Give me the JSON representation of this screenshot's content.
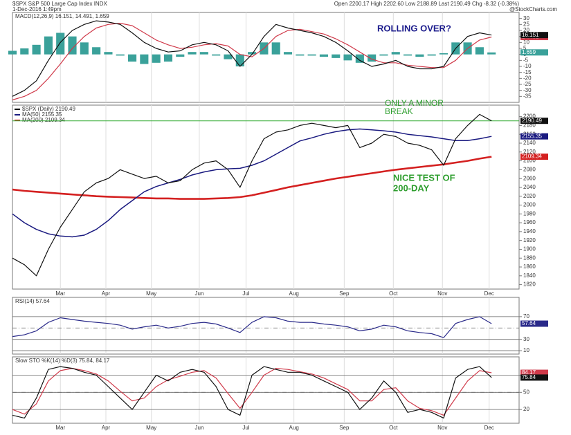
{
  "header": {
    "title": "$SPX S&P 500 Large Cap Index INDX",
    "date": "1-Dec-2016 1:49pm",
    "quote": "Open 2200.17 High 2202.60 Low 2188.89 Last 2190.49 Chg -8.32 (-0.38%)",
    "source": "@StockCharts.com"
  },
  "chart_data": [
    {
      "type": "line",
      "title": "MACD(12,26,9) 16.151, 14.491, 1.659",
      "xlim": [
        0,
        42.3
      ],
      "ylim": [
        -40,
        35
      ],
      "yticks": [
        -35,
        -30,
        -25,
        -20,
        -15,
        -10,
        -5,
        0,
        5,
        10,
        15,
        20,
        25,
        30
      ],
      "annotations": [
        {
          "text": "ROLLING OVER?",
          "color": "#1c1c8c"
        }
      ],
      "series": [
        {
          "type": "bar",
          "color": "#3aa19a",
          "values": [
            3,
            5,
            8,
            15,
            18,
            15,
            10,
            6,
            2,
            -1,
            -6,
            -8,
            -7,
            -6,
            -2,
            2,
            2,
            -1,
            -4,
            -10,
            2,
            10,
            10,
            2,
            -1,
            -1,
            -2,
            -3,
            -5,
            -7,
            -6,
            -1,
            2,
            -1,
            -2,
            -1,
            1,
            10,
            10,
            6,
            1.659
          ]
        },
        {
          "color": "#d03a4a",
          "values": [
            -38,
            -35,
            -30,
            -20,
            -8,
            5,
            15,
            22,
            25,
            26,
            24,
            18,
            12,
            8,
            5,
            6,
            8,
            9,
            7,
            0,
            -2,
            5,
            15,
            20,
            21,
            19,
            17,
            13,
            8,
            2,
            -4,
            -7,
            -7,
            -9,
            -10,
            -11,
            -11,
            -5,
            5,
            12,
            14.491
          ]
        },
        {
          "color": "#111111",
          "values": [
            -35,
            -30,
            -22,
            -5,
            10,
            20,
            25,
            28,
            27,
            25,
            18,
            10,
            5,
            2,
            3,
            8,
            10,
            8,
            3,
            -10,
            0,
            15,
            25,
            22,
            20,
            18,
            15,
            10,
            3,
            -5,
            -10,
            -8,
            -5,
            -10,
            -12,
            -12,
            -10,
            5,
            15,
            18,
            16.151
          ]
        }
      ]
    },
    {
      "type": "line",
      "xlim": [
        0,
        42.3
      ],
      "ylim": [
        1810,
        2226
      ],
      "yticks": [
        1820,
        1840,
        1860,
        1880,
        1900,
        1920,
        1940,
        1960,
        1980,
        2000,
        2020,
        2040,
        2060,
        2080,
        2100,
        2120,
        2140,
        2160,
        2180,
        2200
      ],
      "xticks": [
        {
          "value": 4,
          "label": "Mar"
        },
        {
          "value": 7.8,
          "label": "Apr"
        },
        {
          "value": 11.6,
          "label": "May"
        },
        {
          "value": 15.6,
          "label": "Jun"
        },
        {
          "value": 19.5,
          "label": "Jul"
        },
        {
          "value": 23.5,
          "label": "Aug"
        },
        {
          "value": 27.7,
          "label": "Sep"
        },
        {
          "value": 31.8,
          "label": "Oct"
        },
        {
          "value": 35.9,
          "label": "Nov"
        },
        {
          "value": 39.8,
          "label": "Dec"
        }
      ],
      "last_line": "#33aa33",
      "annotations": [
        {
          "text": "ONLY A MINOR",
          "color": "#2e9e2e"
        },
        {
          "text": "BREAK",
          "color": "#2e9e2e"
        },
        {
          "text": "NICE TEST OF",
          "color": "#2e9e2e"
        },
        {
          "text": "200-DAY",
          "color": "#2e9e2e"
        }
      ],
      "series": [
        {
          "name": "MA(200) 2109.34",
          "color": "#d42020",
          "width": 2.6,
          "values": [
            2035,
            2032,
            2030,
            2028,
            2026,
            2024,
            2022,
            2020,
            2019,
            2018,
            2017,
            2016,
            2015,
            2015,
            2014,
            2014,
            2014,
            2015,
            2016,
            2018,
            2022,
            2028,
            2034,
            2040,
            2045,
            2050,
            2055,
            2060,
            2064,
            2068,
            2072,
            2076,
            2080,
            2083,
            2086,
            2089,
            2092,
            2096,
            2100,
            2105,
            2109.34
          ]
        },
        {
          "name": "MA(50) 2155.35",
          "color": "#1a1a80",
          "width": 1.5,
          "values": [
            1980,
            1960,
            1945,
            1935,
            1930,
            1928,
            1932,
            1945,
            1965,
            1990,
            2010,
            2030,
            2042,
            2050,
            2058,
            2068,
            2075,
            2080,
            2082,
            2083,
            2090,
            2100,
            2115,
            2130,
            2145,
            2152,
            2160,
            2166,
            2170,
            2172,
            2170,
            2168,
            2165,
            2160,
            2157,
            2154,
            2150,
            2146,
            2146,
            2150,
            2155.35
          ]
        },
        {
          "name": "$SPX (Daily) 2190.49",
          "color": "#111111",
          "width": 1.2,
          "values": [
            1880,
            1865,
            1840,
            1900,
            1950,
            1990,
            2030,
            2050,
            2060,
            2080,
            2070,
            2060,
            2065,
            2050,
            2055,
            2080,
            2095,
            2100,
            2080,
            2040,
            2100,
            2150,
            2165,
            2170,
            2180,
            2185,
            2180,
            2175,
            2180,
            2130,
            2140,
            2160,
            2155,
            2140,
            2135,
            2125,
            2090,
            2150,
            2180,
            2205,
            2190.49
          ]
        }
      ]
    },
    {
      "type": "line",
      "title": "RSI(14) 57.64",
      "xlim": [
        0,
        42.3
      ],
      "ylim": [
        4,
        104
      ],
      "yticks": [
        10,
        30,
        70
      ],
      "grid": true,
      "midline": 50,
      "series": [
        {
          "color": "#2a2a8a",
          "values": [
            35,
            38,
            45,
            60,
            68,
            65,
            62,
            60,
            58,
            55,
            48,
            52,
            55,
            50,
            53,
            58,
            60,
            57,
            50,
            42,
            60,
            70,
            68,
            62,
            60,
            60,
            57,
            55,
            52,
            45,
            48,
            55,
            52,
            45,
            42,
            40,
            33,
            58,
            65,
            70,
            57.64
          ]
        }
      ]
    },
    {
      "type": "line",
      "title": "Slow STO %K(14) %D(3) 75.84, 84.17",
      "xlim": [
        0,
        42.3
      ],
      "ylim": [
        -4,
        112
      ],
      "yticks": [
        20,
        50,
        80
      ],
      "grid": true,
      "midline": 50,
      "xticks": [
        {
          "value": 4,
          "label": "Mar"
        },
        {
          "value": 7.8,
          "label": "Apr"
        },
        {
          "value": 11.6,
          "label": "May"
        },
        {
          "value": 15.6,
          "label": "Jun"
        },
        {
          "value": 19.5,
          "label": "Jul"
        },
        {
          "value": 23.5,
          "label": "Aug"
        },
        {
          "value": 27.7,
          "label": "Sep"
        },
        {
          "value": 31.8,
          "label": "Oct"
        },
        {
          "value": 35.9,
          "label": "Nov"
        },
        {
          "value": 39.8,
          "label": "Dec"
        }
      ],
      "series": [
        {
          "color": "#d03a4a",
          "values": [
            20,
            12,
            30,
            70,
            88,
            92,
            88,
            82,
            70,
            52,
            35,
            40,
            60,
            72,
            78,
            85,
            88,
            75,
            48,
            22,
            50,
            80,
            92,
            90,
            86,
            82,
            75,
            65,
            55,
            35,
            35,
            55,
            58,
            35,
            22,
            18,
            10,
            40,
            70,
            88,
            84.17
          ]
        },
        {
          "color": "#111111",
          "values": [
            10,
            5,
            40,
            90,
            95,
            92,
            85,
            80,
            60,
            40,
            20,
            50,
            80,
            70,
            85,
            90,
            85,
            60,
            20,
            10,
            80,
            95,
            90,
            85,
            85,
            80,
            70,
            60,
            50,
            20,
            40,
            70,
            50,
            15,
            20,
            15,
            5,
            75,
            90,
            95,
            75.84
          ]
        }
      ]
    }
  ]
}
